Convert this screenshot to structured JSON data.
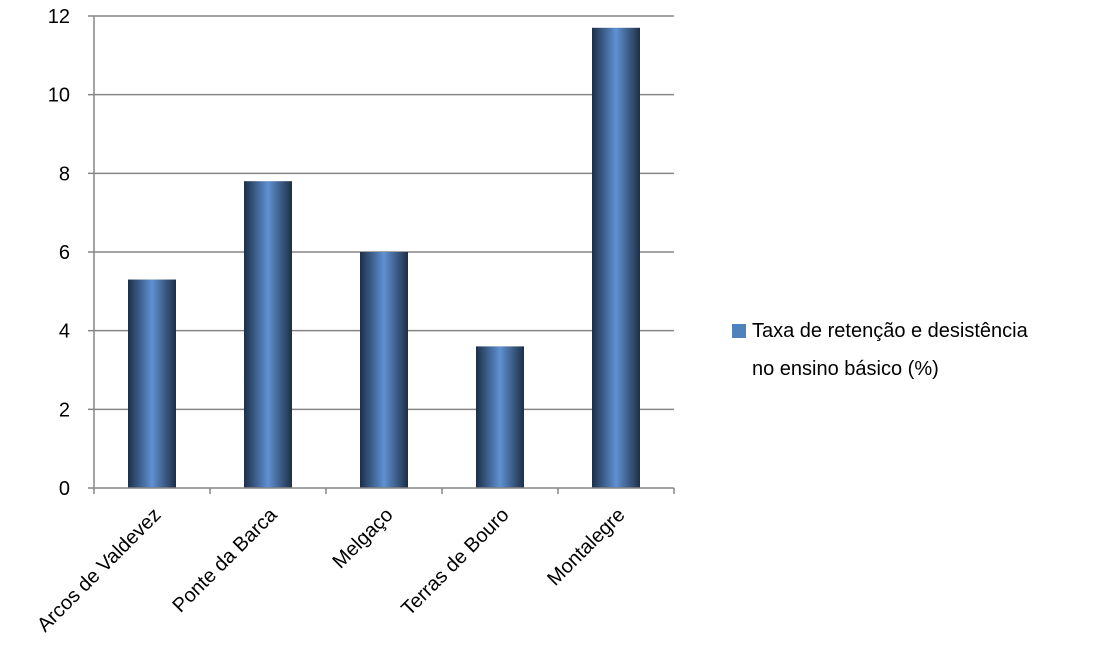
{
  "chart_data": {
    "type": "bar",
    "categories": [
      "Arcos de Valdevez",
      "Ponte da Barca",
      "Melgaço",
      "Terras de Bouro",
      "Montalegre"
    ],
    "series": [
      {
        "name": "Taxa de retenção e desistência no ensino básico (%)",
        "values": [
          5.3,
          7.8,
          6.0,
          3.6,
          11.7
        ],
        "color": "#4F81BD"
      }
    ],
    "y_ticks": [
      "0",
      "2",
      "4",
      "6",
      "8",
      "10",
      "12"
    ],
    "ylim": [
      0,
      12
    ],
    "grid": true,
    "legend_position": "right",
    "legend": {
      "line1": "Taxa de retenção e desistência",
      "line2": "no ensino básico (%)"
    }
  }
}
